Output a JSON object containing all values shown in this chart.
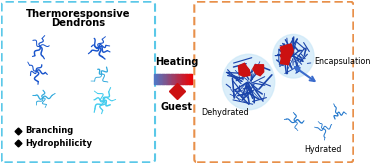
{
  "title_line1": "Thermoresponsive",
  "title_line2": "Dendrons",
  "left_box_color": "#5bc8e8",
  "right_box_color": "#e8904a",
  "bg_color": "#ffffff",
  "heating_text": "Heating",
  "guest_text": "Guest",
  "encapsulation_text": "Encapsulation",
  "dehydrated_text": "Dehydrated",
  "hydrated_text": "Hydrated",
  "branching_text": "Branching",
  "hydrophilicity_text": "Hydrophilicity",
  "guest_color": "#cc1111",
  "blue_arrow_color": "#3a6bcc",
  "dark_blue": "#1a55cc",
  "medium_blue": "#2277cc",
  "cyan_blue": "#33aadd",
  "light_cyan": "#44ccee"
}
